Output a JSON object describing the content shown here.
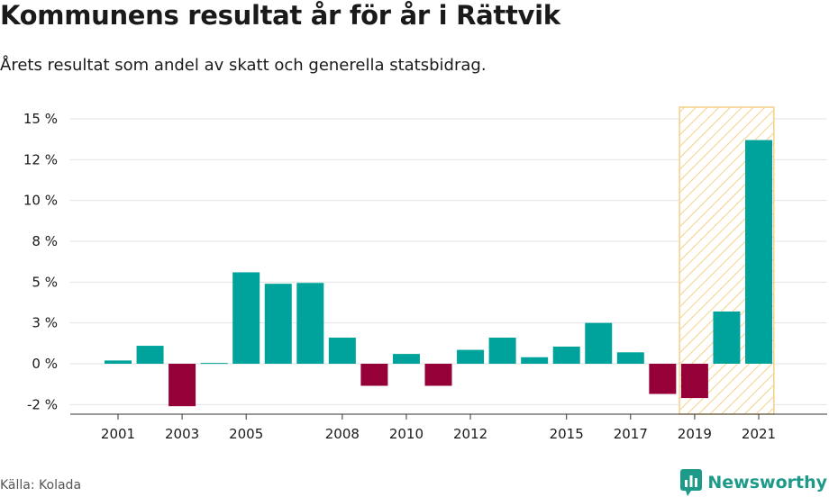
{
  "title": "Kommunens resultat år för år i Rättvik",
  "subtitle": "Årets resultat som andel av skatt och generella statsbidrag.",
  "source": "Källa: Kolada",
  "brand": {
    "name": "Newsworthy",
    "icon": "newsworthy-logo-icon",
    "color": "#1d9a8a"
  },
  "colors": {
    "positive": "#00a39b",
    "negative": "#950039",
    "highlight": "#f5d18a",
    "grid": "#e3e3e3"
  },
  "chart_data": {
    "type": "bar",
    "title": "Kommunens resultat år för år i Rättvik",
    "subtitle": "Årets resultat som andel av skatt och generella statsbidrag.",
    "xlabel": "",
    "ylabel": "",
    "unit": "%",
    "ylim": [
      -2.5,
      16
    ],
    "yticks": [
      -2.5,
      0,
      2.5,
      5,
      7.5,
      10,
      12.5,
      15
    ],
    "ytick_labels": [
      "-2 %",
      "0 %",
      "3 %",
      "5 %",
      "8 %",
      "10 %",
      "12 %",
      "15 %"
    ],
    "categories": [
      "2001",
      "2002",
      "2003",
      "2004",
      "2005",
      "2006",
      "2007",
      "2008",
      "2009",
      "2010",
      "2011",
      "2012",
      "2013",
      "2014",
      "2015",
      "2016",
      "2017",
      "2018",
      "2019",
      "2020",
      "2021"
    ],
    "xtick_labels": [
      "2001",
      "2003",
      "2005",
      "2008",
      "2010",
      "2012",
      "2015",
      "2017",
      "2019",
      "2021"
    ],
    "values": [
      0.2,
      1.1,
      -2.6,
      0.05,
      5.6,
      4.9,
      4.95,
      1.6,
      -1.35,
      0.6,
      -1.35,
      0.85,
      1.6,
      0.4,
      1.05,
      2.5,
      0.7,
      -1.85,
      -2.1,
      3.2,
      13.7
    ],
    "highlight_range": [
      "2019",
      "2021"
    ],
    "grid": true,
    "legend": "none"
  }
}
